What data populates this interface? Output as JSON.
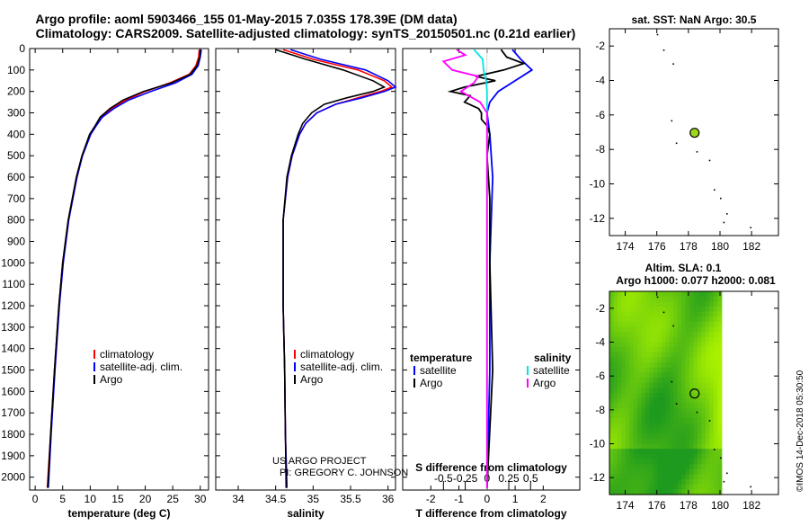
{
  "header": {
    "line1": "Argo profile: aoml 5903466_155 01-May-2015 7.035S 178.39E (DM data)",
    "line2": "Climatology: CARS2009. Satellite-adjusted climatology: synTS_20150501.nc (0.21d earlier)"
  },
  "depth_ticks": [
    0,
    100,
    200,
    300,
    400,
    500,
    600,
    700,
    800,
    900,
    1000,
    1100,
    1200,
    1300,
    1400,
    1500,
    1600,
    1700,
    1800,
    1900,
    2000
  ],
  "credits": {
    "line1": "US ARGO PROJECT",
    "line2": "PI: GREGORY C. JOHNSON"
  },
  "imos_stamp": "©IMOS 14-Dec-2018 05:30:50",
  "colors": {
    "clim": "#ff0000",
    "sat": "#0000ff",
    "argo": "#000000",
    "sal_sat": "#00e5e5",
    "sal_argo": "#ff00ff",
    "ocean": "#ffffff",
    "sla_dark": "#1e9a1e",
    "sla_light": "#a8f000"
  },
  "chart_data": [
    {
      "id": "temperature",
      "type": "line",
      "xlabel": "temperature (deg C)",
      "ylabel": "depth",
      "xlim": [
        -1,
        31.5
      ],
      "ylim": [
        2060,
        0
      ],
      "xticks": [
        0,
        5,
        10,
        15,
        20,
        25,
        30
      ],
      "xtick_labels": [
        "0",
        "5",
        "10",
        "15",
        "20",
        "25",
        "30"
      ],
      "legend": [
        "climatology",
        "satellite-adj. clim.",
        "Argo"
      ],
      "series": [
        {
          "name": "climatology",
          "color": "clim",
          "depth": [
            5,
            40,
            80,
            120,
            160,
            200,
            240,
            280,
            320,
            360,
            400,
            500,
            600,
            800,
            1000,
            1200,
            1500,
            1800,
            2050
          ],
          "values": [
            29.8,
            29.7,
            29.2,
            28.0,
            24.5,
            20.0,
            16.5,
            14.0,
            12.0,
            11.0,
            10.0,
            8.5,
            7.5,
            6.0,
            5.0,
            4.3,
            3.5,
            2.8,
            2.2
          ]
        },
        {
          "name": "satellite-adj. clim.",
          "color": "sat",
          "depth": [
            5,
            40,
            80,
            120,
            160,
            200,
            240,
            280,
            320,
            360,
            400,
            500,
            600,
            800,
            1000,
            1200,
            1500,
            1800,
            2050
          ],
          "values": [
            30.2,
            30.0,
            29.6,
            28.5,
            25.5,
            21.0,
            17.0,
            14.3,
            12.2,
            11.1,
            10.1,
            8.6,
            7.6,
            6.1,
            5.1,
            4.4,
            3.6,
            2.9,
            2.4
          ]
        },
        {
          "name": "Argo",
          "color": "argo",
          "depth": [
            5,
            40,
            80,
            120,
            160,
            200,
            240,
            280,
            320,
            360,
            400,
            500,
            600,
            800,
            1000,
            1200,
            1500,
            1800,
            2050
          ],
          "values": [
            30.0,
            29.9,
            29.4,
            28.2,
            24.8,
            19.7,
            16.0,
            13.6,
            11.8,
            10.9,
            9.9,
            8.5,
            7.5,
            6.0,
            5.0,
            4.3,
            3.5,
            2.8,
            2.3
          ]
        }
      ]
    },
    {
      "id": "salinity",
      "type": "line",
      "xlabel": "salinity",
      "xlim": [
        33.7,
        36.1
      ],
      "ylim": [
        2060,
        0
      ],
      "xticks": [
        34,
        34.5,
        35,
        35.5,
        36
      ],
      "xtick_labels": [
        "34",
        "34.5",
        "35",
        "35.5",
        "36"
      ],
      "legend": [
        "climatology",
        "satellite-adj. clim.",
        "Argo"
      ],
      "series": [
        {
          "name": "climatology",
          "color": "clim",
          "depth": [
            5,
            50,
            100,
            150,
            180,
            200,
            230,
            260,
            300,
            350,
            400,
            500,
            600,
            800,
            1000,
            1200,
            1500,
            1800,
            2050
          ],
          "values": [
            34.6,
            35.0,
            35.6,
            35.95,
            36.05,
            35.9,
            35.6,
            35.3,
            35.05,
            34.9,
            34.82,
            34.72,
            34.66,
            34.6,
            34.6,
            34.6,
            34.62,
            34.63,
            34.65
          ]
        },
        {
          "name": "satellite-adj. clim.",
          "color": "sat",
          "depth": [
            5,
            50,
            100,
            150,
            180,
            200,
            230,
            260,
            300,
            350,
            400,
            500,
            600,
            800,
            1000,
            1200,
            1500,
            1800,
            2050
          ],
          "values": [
            34.7,
            35.1,
            35.7,
            36.0,
            36.1,
            35.95,
            35.65,
            35.3,
            35.05,
            34.9,
            34.82,
            34.72,
            34.66,
            34.6,
            34.6,
            34.6,
            34.62,
            34.63,
            34.65
          ]
        },
        {
          "name": "Argo",
          "color": "argo",
          "depth": [
            5,
            50,
            100,
            150,
            180,
            200,
            230,
            260,
            300,
            350,
            400,
            500,
            600,
            800,
            1000,
            1200,
            1500,
            1800,
            2050
          ],
          "values": [
            34.5,
            34.9,
            35.4,
            35.8,
            35.95,
            35.8,
            35.45,
            35.15,
            34.98,
            34.86,
            34.8,
            34.71,
            34.65,
            34.6,
            34.6,
            34.6,
            34.62,
            34.63,
            34.64
          ]
        }
      ]
    },
    {
      "id": "differences",
      "type": "line",
      "xlabel": "T difference from climatology",
      "xlabel_top": "S difference from climatology",
      "xlim": [
        -3,
        3.3
      ],
      "ylim": [
        2060,
        0
      ],
      "xticks": [
        -2,
        -1,
        0,
        1,
        2
      ],
      "xtick_labels": [
        "-2",
        "-1",
        "0",
        "1",
        "2"
      ],
      "xticks_top": [
        -0.5,
        -0.25,
        0,
        0.25,
        0.5
      ],
      "xtick_top_labels": [
        "-0.5",
        "-0.25",
        "0",
        "0.25",
        "0.5"
      ],
      "legend_left_title": "temperature",
      "legend_right_title": "salinity",
      "legend_left": [
        "satellite",
        "Argo"
      ],
      "legend_right": [
        "satellite",
        "Argo"
      ],
      "series": [
        {
          "name": "T satellite",
          "color": "sat",
          "depth": [
            5,
            50,
            100,
            150,
            200,
            250,
            300,
            400,
            600,
            1000,
            1500,
            2050
          ],
          "values": [
            0.9,
            1.2,
            1.6,
            1.0,
            0.4,
            0.1,
            0.0,
            0.1,
            0.2,
            0.1,
            0.1,
            0.0
          ]
        },
        {
          "name": "T Argo",
          "color": "argo",
          "depth": [
            5,
            40,
            70,
            100,
            130,
            150,
            180,
            200,
            220,
            250,
            280,
            300,
            330,
            360,
            400,
            500,
            700,
            1000,
            1500,
            2050
          ],
          "values": [
            0.5,
            0.7,
            1.3,
            0.6,
            -0.4,
            0.3,
            -0.8,
            -1.3,
            -0.6,
            -0.8,
            -0.3,
            -0.2,
            -0.2,
            0.0,
            0.1,
            0.0,
            0.1,
            0.1,
            0.2,
            0.0
          ]
        },
        {
          "name": "S satellite",
          "color": "sal_sat",
          "depth": [
            5,
            50,
            100,
            150,
            200,
            300,
            500,
            800,
            1200,
            2050
          ],
          "values": [
            -0.15,
            -0.05,
            -0.04,
            -0.01,
            0.0,
            0.0,
            0.0,
            0.0,
            0.0,
            0.0
          ]
        },
        {
          "name": "S Argo",
          "color": "sal_argo",
          "depth": [
            5,
            30,
            60,
            100,
            130,
            160,
            200,
            250,
            300,
            400,
            600,
            1000,
            2050
          ],
          "values": [
            -0.35,
            -0.25,
            -0.5,
            -0.4,
            -0.1,
            -0.15,
            -0.3,
            -0.08,
            0.0,
            0.0,
            0.0,
            0.0,
            0.0
          ]
        }
      ]
    },
    {
      "id": "map_sst",
      "type": "scatter",
      "title": "sat. SST: NaN Argo: 30.5",
      "xlim": [
        173,
        183.7
      ],
      "ylim": [
        -13,
        -1
      ],
      "xticks": [
        174,
        176,
        178,
        180,
        182
      ],
      "yticks": [
        -2,
        -4,
        -6,
        -8,
        -10,
        -12
      ],
      "profile_location": {
        "lon": 178.39,
        "lat": -7.035
      },
      "islands": [
        [
          176.0,
          -1.3
        ],
        [
          176.4,
          -2.2
        ],
        [
          177.0,
          -3.0
        ],
        [
          176.9,
          -6.3
        ],
        [
          177.2,
          -7.6
        ],
        [
          178.5,
          -8.1
        ],
        [
          179.3,
          -8.6
        ],
        [
          179.6,
          -10.3
        ],
        [
          180.0,
          -10.8
        ],
        [
          180.4,
          -11.7
        ],
        [
          181.9,
          -12.5
        ],
        [
          180.2,
          -12.2
        ]
      ]
    },
    {
      "id": "map_sla",
      "type": "heatmap",
      "title": "Altim. SLA: 0.1",
      "subtitle": "Argo h1000: 0.077 h2000: 0.081",
      "xlim": [
        173,
        183.7
      ],
      "ylim": [
        -13,
        -1
      ],
      "xticks": [
        174,
        176,
        178,
        180,
        182
      ],
      "yticks": [
        -2,
        -4,
        -6,
        -8,
        -10,
        -12
      ],
      "data_lon_max": 180.1,
      "profile_location": {
        "lon": 178.39,
        "lat": -7.035
      }
    }
  ]
}
